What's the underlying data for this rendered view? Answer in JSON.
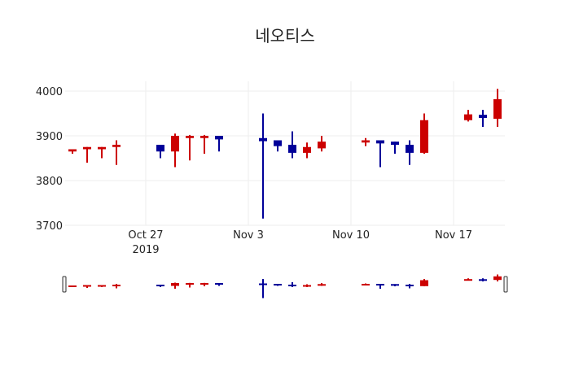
{
  "title": "네오티스",
  "colors": {
    "increasing": "#cc0000",
    "decreasing": "#000099",
    "grid": "#eeeeee"
  },
  "chart_data": {
    "type": "candlestick",
    "title": "네오티스",
    "xlabel": "",
    "ylabel": "",
    "ylim": [
      3700,
      4025
    ],
    "yticks": [
      3700,
      3800,
      3900,
      4000
    ],
    "xticks": [
      {
        "label": "Oct 27",
        "sub": "2019",
        "date": "2019-10-27"
      },
      {
        "label": "Nov 3",
        "sub": "",
        "date": "2019-11-03"
      },
      {
        "label": "Nov 10",
        "sub": "",
        "date": "2019-11-10"
      },
      {
        "label": "Nov 17",
        "sub": "",
        "date": "2019-11-17"
      }
    ],
    "grid": true,
    "rangeslider": true,
    "candles": [
      {
        "date": "2019-10-22",
        "open": 3865,
        "high": 3870,
        "low": 3860,
        "close": 3870
      },
      {
        "date": "2019-10-23",
        "open": 3870,
        "high": 3875,
        "low": 3840,
        "close": 3875
      },
      {
        "date": "2019-10-24",
        "open": 3870,
        "high": 3875,
        "low": 3850,
        "close": 3875
      },
      {
        "date": "2019-10-25",
        "open": 3875,
        "high": 3890,
        "low": 3835,
        "close": 3880
      },
      {
        "date": "2019-10-28",
        "open": 3880,
        "high": 3880,
        "low": 3850,
        "close": 3865
      },
      {
        "date": "2019-10-29",
        "open": 3865,
        "high": 3905,
        "low": 3830,
        "close": 3900
      },
      {
        "date": "2019-10-30",
        "open": 3895,
        "high": 3902,
        "low": 3845,
        "close": 3900
      },
      {
        "date": "2019-10-31",
        "open": 3895,
        "high": 3902,
        "low": 3860,
        "close": 3900
      },
      {
        "date": "2019-11-01",
        "open": 3900,
        "high": 3900,
        "low": 3865,
        "close": 3892
      },
      {
        "date": "2019-11-04",
        "open": 3895,
        "high": 3950,
        "low": 3715,
        "close": 3888
      },
      {
        "date": "2019-11-05",
        "open": 3890,
        "high": 3890,
        "low": 3865,
        "close": 3877
      },
      {
        "date": "2019-11-06",
        "open": 3880,
        "high": 3910,
        "low": 3850,
        "close": 3862
      },
      {
        "date": "2019-11-07",
        "open": 3862,
        "high": 3885,
        "low": 3850,
        "close": 3875
      },
      {
        "date": "2019-11-08",
        "open": 3872,
        "high": 3900,
        "low": 3865,
        "close": 3887
      },
      {
        "date": "2019-11-11",
        "open": 3885,
        "high": 3895,
        "low": 3877,
        "close": 3890
      },
      {
        "date": "2019-11-12",
        "open": 3890,
        "high": 3890,
        "low": 3830,
        "close": 3883
      },
      {
        "date": "2019-11-13",
        "open": 3887,
        "high": 3887,
        "low": 3860,
        "close": 3880
      },
      {
        "date": "2019-11-14",
        "open": 3880,
        "high": 3890,
        "low": 3835,
        "close": 3862
      },
      {
        "date": "2019-11-15",
        "open": 3862,
        "high": 3950,
        "low": 3860,
        "close": 3935
      },
      {
        "date": "2019-11-18",
        "open": 3935,
        "high": 3958,
        "low": 3932,
        "close": 3948
      },
      {
        "date": "2019-11-19",
        "open": 3947,
        "high": 3958,
        "low": 3920,
        "close": 3940
      },
      {
        "date": "2019-11-20",
        "open": 3938,
        "high": 4005,
        "low": 3920,
        "close": 3982
      }
    ]
  }
}
